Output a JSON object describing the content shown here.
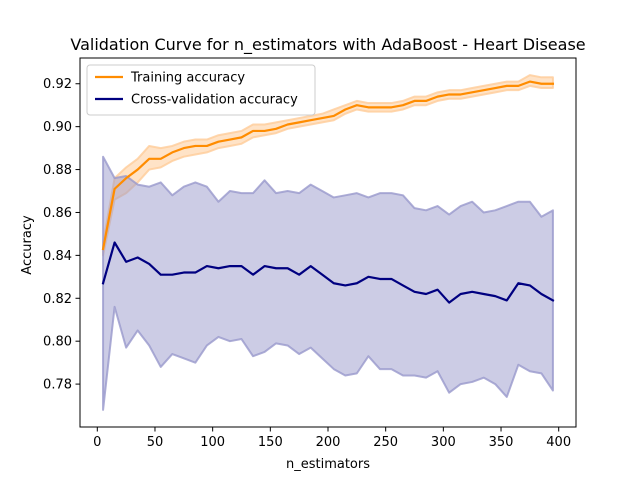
{
  "chart_data": {
    "type": "line",
    "title": "Validation Curve for n_estimators with AdaBoost - Heart Disease",
    "xlabel": "n_estimators",
    "ylabel": "Accuracy",
    "xlim": [
      -15,
      415
    ],
    "ylim": [
      0.76,
      0.932
    ],
    "xticks": [
      0,
      50,
      100,
      150,
      200,
      250,
      300,
      350,
      400
    ],
    "yticks": [
      0.78,
      0.8,
      0.82,
      0.84,
      0.86,
      0.88,
      0.9,
      0.92
    ],
    "ytick_labels": [
      "0.78",
      "0.80",
      "0.82",
      "0.84",
      "0.86",
      "0.88",
      "0.90",
      "0.92"
    ],
    "grid": false,
    "legend_position": "upper-left",
    "x": [
      5,
      15,
      25,
      35,
      45,
      55,
      65,
      75,
      85,
      95,
      105,
      115,
      125,
      135,
      145,
      155,
      165,
      175,
      185,
      195,
      205,
      215,
      225,
      235,
      245,
      255,
      265,
      275,
      285,
      295,
      305,
      315,
      325,
      335,
      345,
      355,
      365,
      375,
      385,
      395
    ],
    "series": [
      {
        "name": "Training accuracy",
        "color": "#ff8c00",
        "values": [
          0.843,
          0.871,
          0.876,
          0.88,
          0.885,
          0.885,
          0.888,
          0.89,
          0.891,
          0.891,
          0.893,
          0.894,
          0.895,
          0.898,
          0.898,
          0.899,
          0.901,
          0.902,
          0.903,
          0.904,
          0.905,
          0.908,
          0.91,
          0.909,
          0.909,
          0.909,
          0.91,
          0.912,
          0.912,
          0.914,
          0.915,
          0.915,
          0.916,
          0.917,
          0.918,
          0.919,
          0.919,
          0.921,
          0.92,
          0.92
        ],
        "band_lower": [
          0.84,
          0.866,
          0.869,
          0.874,
          0.88,
          0.881,
          0.884,
          0.886,
          0.887,
          0.888,
          0.89,
          0.891,
          0.892,
          0.895,
          0.896,
          0.897,
          0.899,
          0.9,
          0.901,
          0.902,
          0.903,
          0.906,
          0.908,
          0.907,
          0.907,
          0.907,
          0.908,
          0.91,
          0.91,
          0.912,
          0.913,
          0.913,
          0.914,
          0.915,
          0.916,
          0.917,
          0.917,
          0.919,
          0.918,
          0.918
        ],
        "band_upper": [
          0.846,
          0.876,
          0.881,
          0.885,
          0.891,
          0.89,
          0.891,
          0.893,
          0.894,
          0.894,
          0.896,
          0.897,
          0.898,
          0.901,
          0.901,
          0.902,
          0.903,
          0.904,
          0.905,
          0.906,
          0.908,
          0.91,
          0.912,
          0.911,
          0.911,
          0.911,
          0.912,
          0.914,
          0.914,
          0.916,
          0.917,
          0.917,
          0.918,
          0.919,
          0.92,
          0.921,
          0.921,
          0.924,
          0.923,
          0.923
        ]
      },
      {
        "name": "Cross-validation accuracy",
        "color": "#000080",
        "values": [
          0.827,
          0.846,
          0.837,
          0.839,
          0.836,
          0.831,
          0.831,
          0.832,
          0.832,
          0.835,
          0.834,
          0.835,
          0.835,
          0.831,
          0.835,
          0.834,
          0.834,
          0.831,
          0.835,
          0.831,
          0.827,
          0.826,
          0.827,
          0.83,
          0.829,
          0.829,
          0.826,
          0.823,
          0.822,
          0.824,
          0.818,
          0.822,
          0.823,
          0.822,
          0.821,
          0.819,
          0.827,
          0.826,
          0.822,
          0.819
        ],
        "band_lower": [
          0.768,
          0.816,
          0.797,
          0.805,
          0.798,
          0.788,
          0.794,
          0.792,
          0.79,
          0.798,
          0.802,
          0.8,
          0.801,
          0.793,
          0.795,
          0.799,
          0.798,
          0.794,
          0.797,
          0.792,
          0.787,
          0.784,
          0.785,
          0.793,
          0.787,
          0.787,
          0.784,
          0.784,
          0.783,
          0.786,
          0.776,
          0.78,
          0.781,
          0.783,
          0.78,
          0.774,
          0.789,
          0.786,
          0.785,
          0.777
        ],
        "band_upper": [
          0.886,
          0.876,
          0.877,
          0.873,
          0.872,
          0.874,
          0.868,
          0.872,
          0.874,
          0.872,
          0.865,
          0.87,
          0.869,
          0.869,
          0.875,
          0.869,
          0.87,
          0.869,
          0.873,
          0.87,
          0.867,
          0.868,
          0.869,
          0.867,
          0.869,
          0.869,
          0.868,
          0.862,
          0.861,
          0.863,
          0.859,
          0.863,
          0.865,
          0.86,
          0.861,
          0.863,
          0.865,
          0.865,
          0.858,
          0.861
        ]
      }
    ],
    "band_colors": [
      "#ffcc99",
      "#9999cc"
    ]
  }
}
